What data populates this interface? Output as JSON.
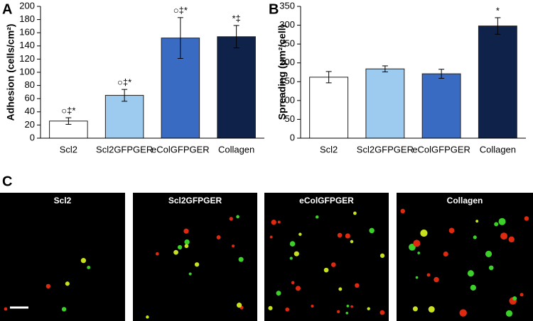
{
  "chart_data": [
    {
      "type": "bar",
      "panel": "A",
      "ylabel": "Adhesion (cells/cm²)",
      "categories": [
        "Scl2",
        "Scl2GFPGER",
        "eColGFPGER",
        "Collagen"
      ],
      "values": [
        26,
        65,
        152,
        154
      ],
      "errors": [
        5,
        9,
        31,
        17
      ],
      "colors": [
        "#ffffff",
        "#9dcaef",
        "#3a6bc3",
        "#0f2249"
      ],
      "annotations": [
        "○‡*",
        "○‡*",
        "○‡*",
        "*‡"
      ],
      "ylim": [
        0,
        200
      ],
      "yticks": [
        0,
        20,
        40,
        60,
        80,
        100,
        120,
        140,
        160,
        180,
        200
      ]
    },
    {
      "type": "bar",
      "panel": "B",
      "ylabel": "Spreading (μm²/cell)",
      "categories": [
        "Scl2",
        "Scl2GFPGER",
        "eColGFPGER",
        "Collagen"
      ],
      "values": [
        162,
        184,
        171,
        298
      ],
      "errors": [
        15,
        8,
        12,
        22
      ],
      "colors": [
        "#ffffff",
        "#9dcaef",
        "#3a6bc3",
        "#0f2249"
      ],
      "annotations": [
        null,
        null,
        null,
        "*"
      ],
      "ylim": [
        0,
        350
      ],
      "yticks": [
        0,
        50,
        100,
        150,
        200,
        250,
        300,
        350
      ]
    }
  ],
  "images": {
    "panel": "C",
    "labels": [
      "Scl2",
      "Scl2GFPGER",
      "eColGFPGER",
      "Collagen"
    ]
  }
}
